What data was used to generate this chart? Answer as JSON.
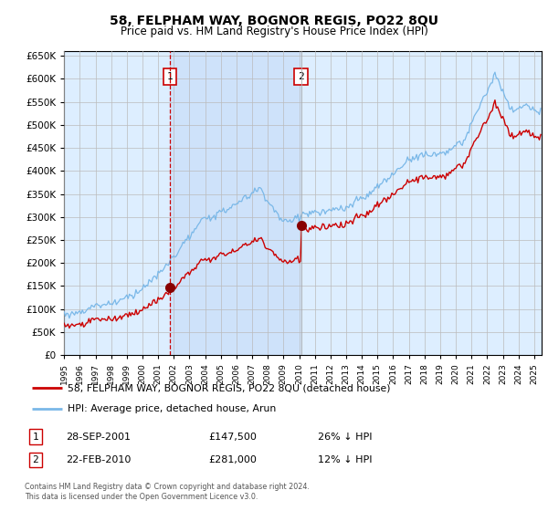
{
  "title": "58, FELPHAM WAY, BOGNOR REGIS, PO22 8QU",
  "subtitle": "Price paid vs. HM Land Registry's House Price Index (HPI)",
  "legend_line1": "58, FELPHAM WAY, BOGNOR REGIS, PO22 8QU (detached house)",
  "legend_line2": "HPI: Average price, detached house, Arun",
  "sale1_label": "1",
  "sale1_date": "28-SEP-2001",
  "sale1_price": "£147,500",
  "sale1_hpi": "26% ↓ HPI",
  "sale2_label": "2",
  "sale2_date": "22-FEB-2010",
  "sale2_price": "£281,000",
  "sale2_hpi": "12% ↓ HPI",
  "footnote": "Contains HM Land Registry data © Crown copyright and database right 2024.\nThis data is licensed under the Open Government Licence v3.0.",
  "hpi_color": "#7ab8e8",
  "price_color": "#cc0000",
  "sale_marker_color": "#880000",
  "background_plot": "#ddeeff",
  "shade_color": "#c8ddf0",
  "grid_color": "#bbbbbb",
  "sale1_x_year": 2001.75,
  "sale2_x_year": 2010.13,
  "sale1_y": 147500,
  "sale2_y": 281000,
  "ylim": [
    0,
    660000
  ],
  "xlim_start": 1995.0,
  "xlim_end": 2025.5
}
